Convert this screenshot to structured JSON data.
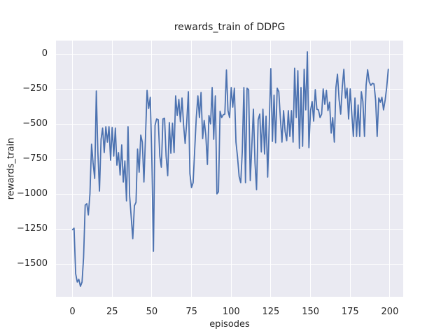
{
  "chart_data": {
    "type": "line",
    "title": "rewards_train of DDPG",
    "xlabel": "episodes",
    "ylabel": "rewards_train",
    "x_ticks": [
      0,
      25,
      50,
      75,
      100,
      125,
      150,
      175,
      200
    ],
    "x_tick_labels": [
      "0",
      "25",
      "50",
      "75",
      "100",
      "125",
      "150",
      "175",
      "200"
    ],
    "y_ticks": [
      0,
      -250,
      -500,
      -750,
      -1000,
      -1250,
      -1500
    ],
    "y_tick_labels": [
      "0",
      "−250",
      "−500",
      "−750",
      "−1000",
      "−1250",
      "−1500"
    ],
    "xlim": [
      -10.4,
      208.4
    ],
    "ylim": [
      -1735,
      95
    ],
    "grid": true,
    "legend": false,
    "colors": {
      "line": "#4C72B0",
      "plot_background": "#EAEAF2",
      "gridline": "#FFFFFF",
      "text": "#262626",
      "figure_background": "#FFFFFF"
    },
    "series": [
      {
        "name": "rewards_train",
        "x_start": 0,
        "x_step": 1,
        "values": [
          -1255,
          -1245,
          -1570,
          -1630,
          -1610,
          -1660,
          -1630,
          -1455,
          -1080,
          -1070,
          -1150,
          -1000,
          -645,
          -780,
          -890,
          -265,
          -700,
          -980,
          -610,
          -530,
          -705,
          -520,
          -630,
          -520,
          -760,
          -525,
          -730,
          -530,
          -795,
          -705,
          -865,
          -650,
          -915,
          -765,
          -1050,
          -520,
          -1015,
          -1170,
          -1320,
          -1085,
          -1060,
          -680,
          -845,
          -580,
          -630,
          -915,
          -585,
          -260,
          -390,
          -310,
          -745,
          -1410,
          -510,
          -465,
          -470,
          -730,
          -810,
          -465,
          -460,
          -730,
          -870,
          -490,
          -710,
          -495,
          -705,
          -300,
          -440,
          -325,
          -485,
          -315,
          -510,
          -640,
          -485,
          -270,
          -855,
          -955,
          -920,
          -690,
          -455,
          -300,
          -455,
          -275,
          -605,
          -475,
          -580,
          -790,
          -440,
          -500,
          -240,
          -610,
          -300,
          -1000,
          -985,
          -410,
          -455,
          -435,
          -430,
          -115,
          -405,
          -455,
          -240,
          -380,
          -245,
          -630,
          -735,
          -875,
          -920,
          -700,
          -240,
          -920,
          -245,
          -255,
          -905,
          -665,
          -395,
          -780,
          -970,
          -470,
          -430,
          -700,
          -395,
          -715,
          -445,
          -880,
          -495,
          -105,
          -625,
          -295,
          -635,
          -245,
          -270,
          -455,
          -630,
          -405,
          -555,
          -620,
          -405,
          -590,
          -405,
          -630,
          -102,
          -455,
          -120,
          -675,
          -240,
          -660,
          -110,
          -400,
          15,
          -670,
          -405,
          -340,
          -480,
          -255,
          -395,
          -400,
          -455,
          -430,
          -250,
          -360,
          -260,
          -405,
          -345,
          -565,
          -455,
          -630,
          -240,
          -145,
          -325,
          -430,
          -235,
          -110,
          -315,
          -245,
          -465,
          -250,
          -430,
          -590,
          -315,
          -590,
          -365,
          -590,
          -270,
          -340,
          -590,
          -225,
          -113,
          -200,
          -225,
          -210,
          -215,
          -330,
          -590,
          -315,
          -345,
          -310,
          -400,
          -330,
          -240,
          -110
        ]
      }
    ]
  }
}
